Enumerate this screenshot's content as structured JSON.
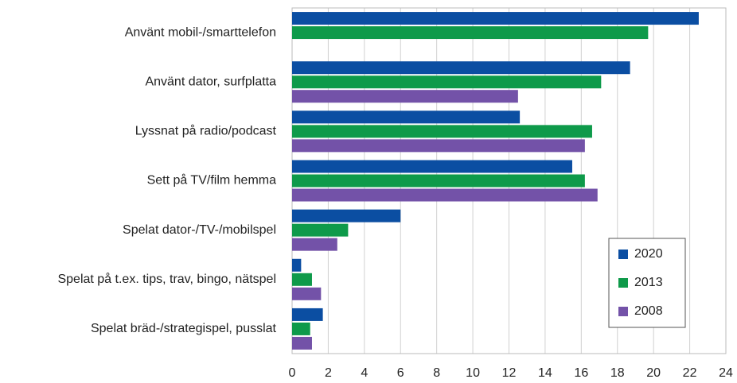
{
  "chart_data": {
    "type": "barh",
    "categories": [
      "Använt mobil-/smarttelefon",
      "Använt dator, surfplatta",
      "Lyssnat på radio/podcast",
      "Sett på TV/film hemma",
      "Spelat dator-/TV-/mobilspel",
      "Spelat på t.ex. tips, trav, bingo, nätspel",
      "Spelat bräd-/strategispel, pusslat"
    ],
    "series": [
      {
        "name": "2020",
        "color": "#0b4ea2",
        "values": [
          22.5,
          18.7,
          12.6,
          15.5,
          6.0,
          0.5,
          1.7
        ]
      },
      {
        "name": "2013",
        "color": "#0e9a4a",
        "values": [
          19.7,
          17.1,
          16.6,
          16.2,
          3.1,
          1.1,
          1.0
        ]
      },
      {
        "name": "2008",
        "color": "#7352a8",
        "values": [
          null,
          12.5,
          16.2,
          16.9,
          2.5,
          1.6,
          1.1
        ]
      }
    ],
    "xlim": [
      0,
      24
    ],
    "xticks": [
      0,
      2,
      4,
      6,
      8,
      10,
      12,
      14,
      16,
      18,
      20,
      22,
      24
    ],
    "grid": true,
    "legend": "lower right"
  }
}
